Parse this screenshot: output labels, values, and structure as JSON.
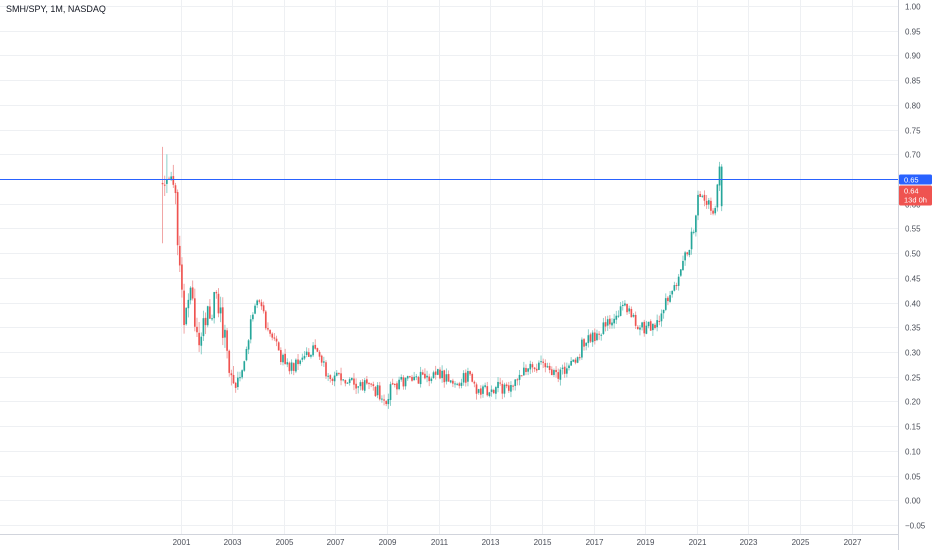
{
  "chart_data": {
    "type": "candlestick",
    "title": "SMH/SPY, 1M, NASDAQ",
    "x_ticks": [
      "2001",
      "2003",
      "2005",
      "2007",
      "2009",
      "2011",
      "2013",
      "2015",
      "2017",
      "2019",
      "2021",
      "2023",
      "2025",
      "2027"
    ],
    "y_ticks": [
      "1.00",
      "0.95",
      "0.90",
      "0.85",
      "0.80",
      "0.75",
      "0.70",
      "0.65",
      "0.60",
      "0.55",
      "0.50",
      "0.45",
      "0.40",
      "0.35",
      "0.30",
      "0.25",
      "0.20",
      "0.15",
      "0.10",
      "0.05",
      "0.00",
      "−0.05"
    ],
    "ylim": [
      -0.068,
      1.012
    ],
    "xlim": [
      1994.0,
      2028.8
    ],
    "grid": true,
    "colors": {
      "up": "#26a69a",
      "down": "#ef5350",
      "hline": "#2962ff",
      "wick_down": "#ef9a9a",
      "wick_up": "#80cbc4"
    },
    "horizontal_line": {
      "value": 0.65,
      "label": "0.65"
    },
    "last_price": {
      "value": 0.64,
      "label": "0.64",
      "countdown": "13d 0h"
    },
    "price_path": [
      [
        2000.3,
        0.64
      ],
      [
        2000.4,
        0.65
      ],
      [
        2000.6,
        0.64
      ],
      [
        2000.8,
        0.64
      ],
      [
        2000.9,
        0.5
      ],
      [
        2001.0,
        0.43
      ],
      [
        2001.1,
        0.37
      ],
      [
        2001.4,
        0.41
      ],
      [
        2001.7,
        0.33
      ],
      [
        2002.1,
        0.39
      ],
      [
        2002.4,
        0.4
      ],
      [
        2002.7,
        0.34
      ],
      [
        2002.9,
        0.27
      ],
      [
        2003.0,
        0.24
      ],
      [
        2003.3,
        0.25
      ],
      [
        2003.6,
        0.33
      ],
      [
        2003.9,
        0.39
      ],
      [
        2004.0,
        0.41
      ],
      [
        2004.3,
        0.36
      ],
      [
        2004.7,
        0.31
      ],
      [
        2005.0,
        0.28
      ],
      [
        2005.3,
        0.27
      ],
      [
        2005.6,
        0.29
      ],
      [
        2005.9,
        0.3
      ],
      [
        2006.2,
        0.3
      ],
      [
        2006.5,
        0.27
      ],
      [
        2007.0,
        0.25
      ],
      [
        2007.4,
        0.24
      ],
      [
        2007.9,
        0.23
      ],
      [
        2008.3,
        0.23
      ],
      [
        2008.7,
        0.22
      ],
      [
        2008.9,
        0.19
      ],
      [
        2009.2,
        0.23
      ],
      [
        2009.6,
        0.24
      ],
      [
        2010.0,
        0.25
      ],
      [
        2010.5,
        0.25
      ],
      [
        2011.0,
        0.26
      ],
      [
        2011.3,
        0.25
      ],
      [
        2011.7,
        0.24
      ],
      [
        2012.1,
        0.25
      ],
      [
        2012.6,
        0.22
      ],
      [
        2013.0,
        0.22
      ],
      [
        2013.5,
        0.23
      ],
      [
        2014.0,
        0.24
      ],
      [
        2014.5,
        0.27
      ],
      [
        2015.0,
        0.27
      ],
      [
        2015.4,
        0.25
      ],
      [
        2015.9,
        0.26
      ],
      [
        2016.3,
        0.28
      ],
      [
        2016.7,
        0.33
      ],
      [
        2017.0,
        0.33
      ],
      [
        2017.4,
        0.35
      ],
      [
        2017.8,
        0.37
      ],
      [
        2018.1,
        0.39
      ],
      [
        2018.5,
        0.38
      ],
      [
        2018.8,
        0.35
      ],
      [
        2019.1,
        0.35
      ],
      [
        2019.5,
        0.36
      ],
      [
        2019.9,
        0.41
      ],
      [
        2020.2,
        0.43
      ],
      [
        2020.6,
        0.5
      ],
      [
        2020.9,
        0.55
      ],
      [
        2021.1,
        0.63
      ],
      [
        2021.4,
        0.6
      ],
      [
        2021.7,
        0.59
      ],
      [
        2021.9,
        0.67
      ],
      [
        2022.0,
        0.64
      ]
    ]
  }
}
